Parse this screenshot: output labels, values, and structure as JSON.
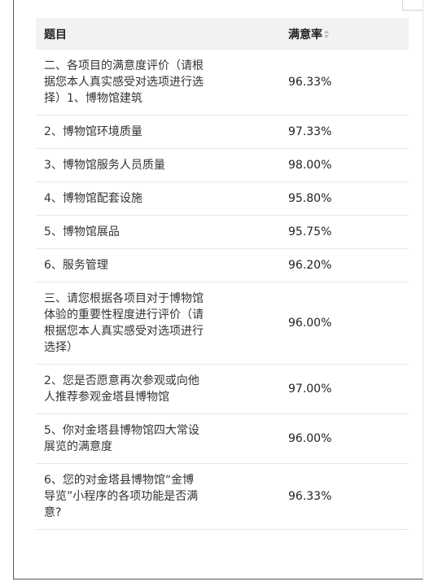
{
  "table": {
    "headers": {
      "question": "题目",
      "satisfaction": "满意率"
    },
    "rows": [
      {
        "question": "二、各项目的满意度评价（请根据您本人真实感受对选项进行选择）1、博物馆建筑",
        "rate": "96.33%"
      },
      {
        "question": "2、博物馆环境质量",
        "rate": "97.33%"
      },
      {
        "question": "3、博物馆服务人员质量",
        "rate": "98.00%"
      },
      {
        "question": "4、博物馆配套设施",
        "rate": "95.80%"
      },
      {
        "question": "5、博物馆展品",
        "rate": "95.75%"
      },
      {
        "question": "6、服务管理",
        "rate": "96.20%"
      },
      {
        "question": "三、请您根据各项目对于博物馆体验的重要性程度进行评价（请根据您本人真实感受对选项进行选择）",
        "rate": "96.00%"
      },
      {
        "question": "2、您是否愿意再次参观或向他人推荐参观金塔县博物馆",
        "rate": "97.00%"
      },
      {
        "question": "5、你对金塔县博物馆四大常设展览的满意度",
        "rate": "96.00%"
      },
      {
        "question": "6、您的对金塔县博物馆“金博导览”小程序的各项功能是否满意?",
        "rate": "96.33%"
      }
    ]
  },
  "icons": {
    "sort": "sort-arrows-icon"
  }
}
